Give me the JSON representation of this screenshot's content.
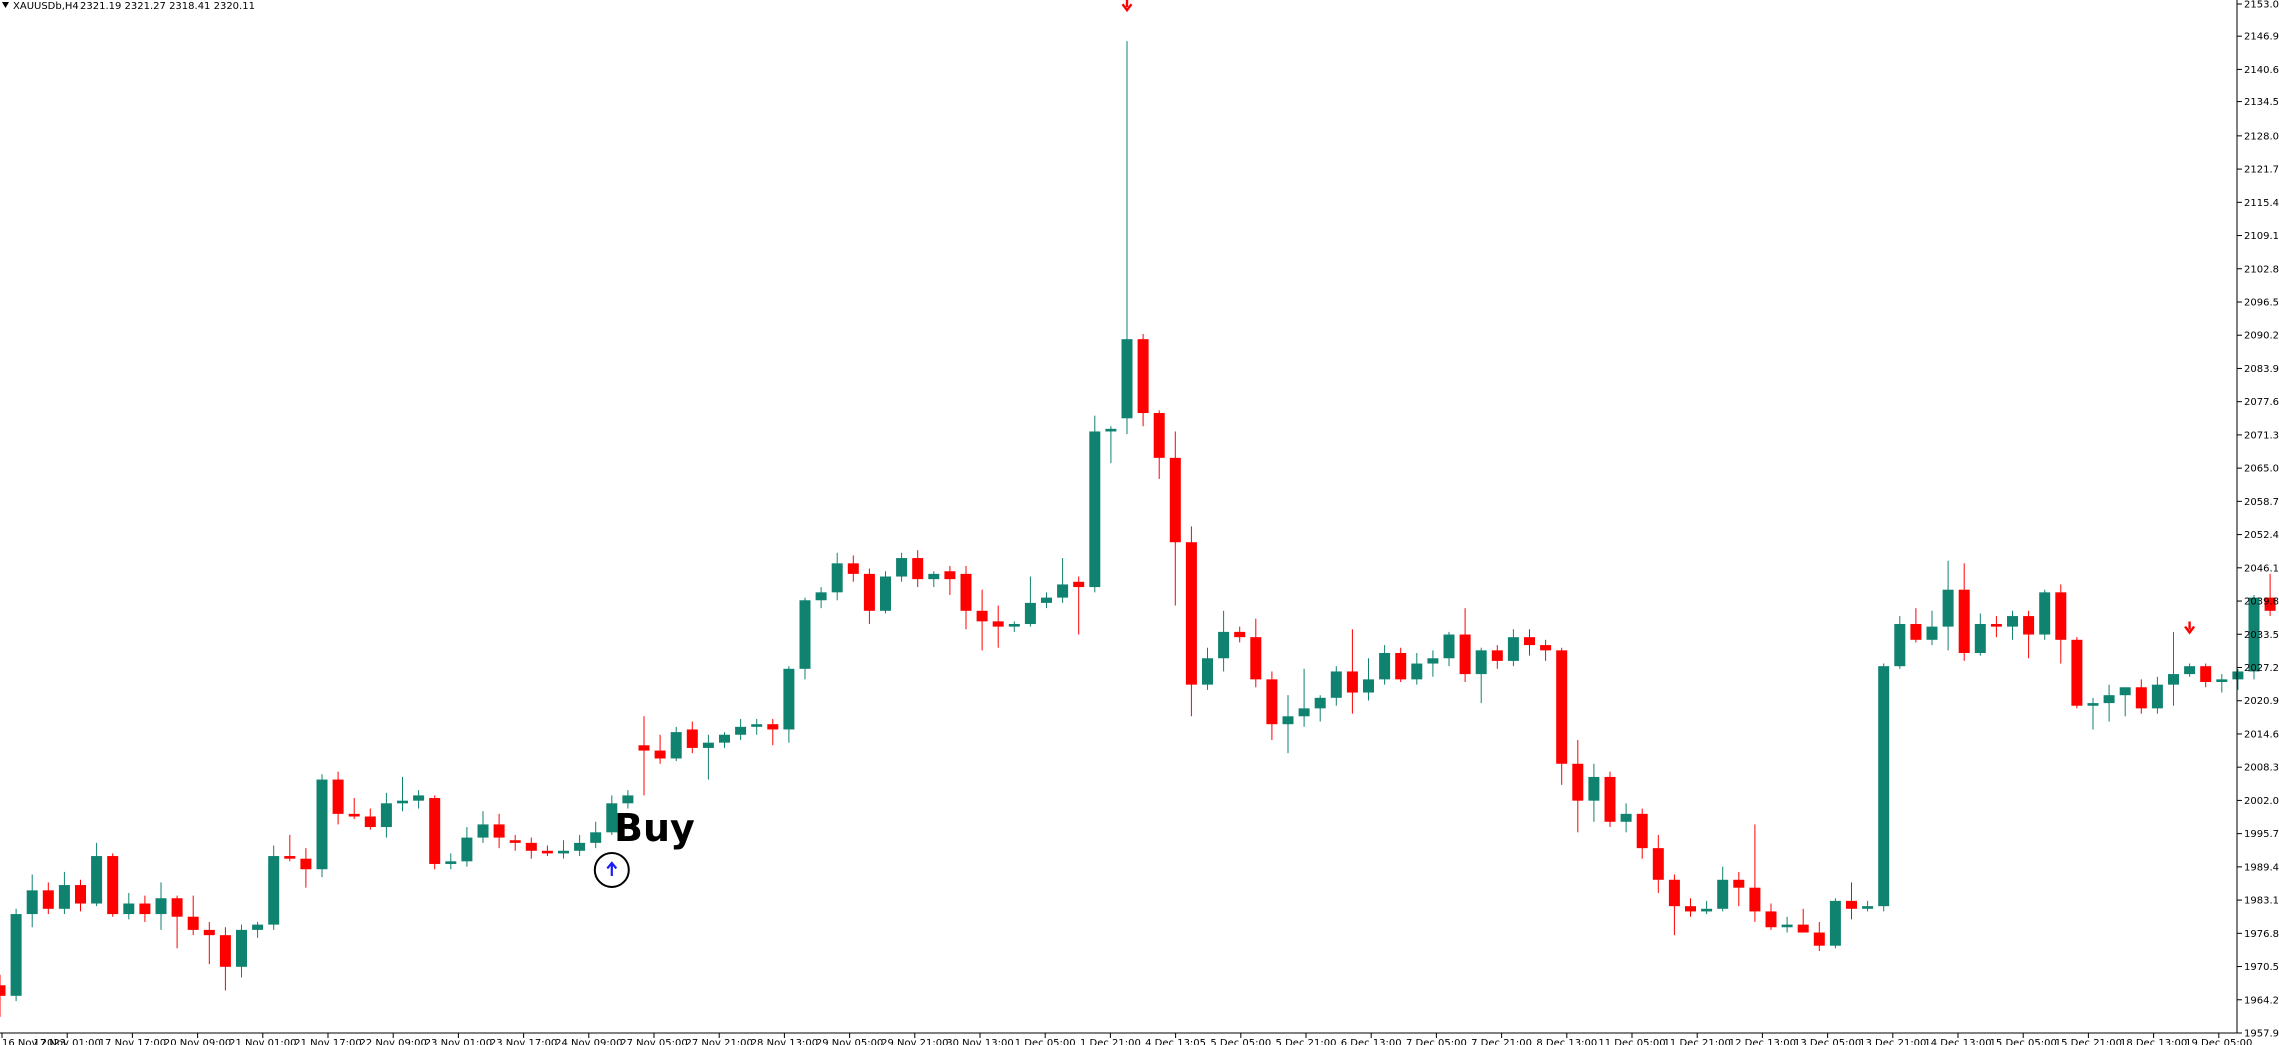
{
  "header": {
    "symbol": "XAUUSDb,H4",
    "ohlc": "2321.19 2321.27 2318.41 2320.11"
  },
  "colors": {
    "bull": "#0f8270",
    "bear": "#ff0000",
    "down_arrow": "#ff0000",
    "up_arrow": "#1a1aff",
    "axis": "#000000",
    "background": "#ffffff"
  },
  "chart_data": {
    "type": "candlestick",
    "title": "",
    "ylim": [
      1957.95,
      2153.05
    ],
    "y_ticks": [
      "2153.05",
      "2146.95",
      "2140.65",
      "2134.55",
      "2128.05",
      "2121.75",
      "2115.45",
      "2109.15",
      "2102.85",
      "2096.55",
      "2090.25",
      "2083.95",
      "2077.65",
      "2071.35",
      "2065.05",
      "2058.75",
      "2052.45",
      "2046.15",
      "2039.85",
      "2033.55",
      "2027.25",
      "2020.95",
      "2014.65",
      "2008.35",
      "2002.05",
      "1995.75",
      "1989.45",
      "1983.15",
      "1976.85",
      "1970.55",
      "1964.25",
      "1957.95"
    ],
    "x_ticks": [
      "16 Nov 2023",
      "17 Nov 01:00",
      "17 Nov 17:00",
      "20 Nov 09:00",
      "21 Nov 01:00",
      "21 Nov 17:00",
      "22 Nov 09:00",
      "23 Nov 01:00",
      "23 Nov 17:00",
      "24 Nov 09:00",
      "27 Nov 05:00",
      "27 Nov 21:00",
      "28 Nov 13:00",
      "29 Nov 05:00",
      "29 Nov 21:00",
      "30 Nov 13:00",
      "1 Dec 05:00",
      "1 Dec 21:00",
      "4 Dec 13:05",
      "5 Dec 05:00",
      "5 Dec 21:00",
      "6 Dec 13:00",
      "7 Dec 05:00",
      "7 Dec 21:00",
      "8 Dec 13:00",
      "11 Dec 05:00",
      "11 Dec 21:00",
      "12 Dec 13:00",
      "13 Dec 05:00",
      "13 Dec 21:00",
      "14 Dec 13:00",
      "15 Dec 05:00",
      "15 Dec 21:00",
      "18 Dec 13:00",
      "19 Dec 05:00"
    ],
    "candles": [
      [
        1967.0,
        1969.0,
        1961.0,
        1965.0
      ],
      [
        1965.0,
        1981.5,
        1964.0,
        1980.5
      ],
      [
        1980.5,
        1988.0,
        1978.0,
        1985.0
      ],
      [
        1985.0,
        1986.5,
        1980.5,
        1981.5
      ],
      [
        1981.5,
        1988.5,
        1980.5,
        1986.0
      ],
      [
        1986.0,
        1987.0,
        1981.0,
        1982.5
      ],
      [
        1982.5,
        1994.0,
        1982.0,
        1991.5
      ],
      [
        1991.5,
        1992.0,
        1980.0,
        1980.5
      ],
      [
        1980.5,
        1984.5,
        1979.5,
        1982.5
      ],
      [
        1982.5,
        1984.0,
        1979.0,
        1980.5
      ],
      [
        1980.5,
        1986.5,
        1977.5,
        1983.5
      ],
      [
        1983.5,
        1984.0,
        1974.0,
        1980.0
      ],
      [
        1980.0,
        1984.0,
        1976.5,
        1977.5
      ],
      [
        1977.5,
        1979.0,
        1971.0,
        1976.5
      ],
      [
        1976.5,
        1978.0,
        1966.0,
        1970.5
      ],
      [
        1970.5,
        1978.5,
        1968.5,
        1977.5
      ],
      [
        1977.5,
        1979.0,
        1976.0,
        1978.5
      ],
      [
        1978.5,
        1993.5,
        1977.5,
        1991.5
      ],
      [
        1991.5,
        1995.5,
        1990.5,
        1991.0
      ],
      [
        1991.0,
        1993.0,
        1985.5,
        1989.0
      ],
      [
        1989.0,
        2007.0,
        1987.5,
        2006.0
      ],
      [
        2006.0,
        2007.5,
        1997.5,
        1999.5
      ],
      [
        1999.5,
        2002.5,
        1998.5,
        1999.0
      ],
      [
        1999.0,
        2000.5,
        1996.5,
        1997.0
      ],
      [
        1997.0,
        2003.5,
        1995.0,
        2001.5
      ],
      [
        2001.5,
        2006.5,
        2000.0,
        2002.0
      ],
      [
        2002.0,
        2004.0,
        2000.5,
        2003.0
      ],
      [
        2002.5,
        2003.0,
        1989.0,
        1990.0
      ],
      [
        1990.0,
        1992.0,
        1989.0,
        1990.5
      ],
      [
        1990.5,
        1997.0,
        1989.5,
        1995.0
      ],
      [
        1995.0,
        2000.0,
        1994.0,
        1997.5
      ],
      [
        1997.5,
        1999.5,
        1993.0,
        1995.0
      ],
      [
        1994.5,
        1995.5,
        1992.5,
        1994.0
      ],
      [
        1994.0,
        1995.0,
        1991.0,
        1992.5
      ],
      [
        1992.5,
        1993.5,
        1991.5,
        1992.0
      ],
      [
        1992.0,
        1994.5,
        1991.0,
        1992.5
      ],
      [
        1992.5,
        1995.5,
        1991.5,
        1994.0
      ],
      [
        1994.0,
        1998.0,
        1993.0,
        1996.0
      ],
      [
        1996.0,
        2003.0,
        1995.5,
        2001.5
      ],
      [
        2001.5,
        2004.0,
        2000.5,
        2003.0
      ],
      [
        2012.5,
        2018.0,
        2003.0,
        2011.5
      ],
      [
        2011.5,
        2014.5,
        2009.0,
        2010.0
      ],
      [
        2010.0,
        2016.0,
        2009.5,
        2015.0
      ],
      [
        2015.5,
        2017.0,
        2011.0,
        2012.0
      ],
      [
        2012.0,
        2014.5,
        2006.0,
        2013.0
      ],
      [
        2013.0,
        2015.0,
        2012.0,
        2014.5
      ],
      [
        2014.5,
        2017.5,
        2013.5,
        2016.0
      ],
      [
        2016.0,
        2017.5,
        2014.5,
        2016.5
      ],
      [
        2016.5,
        2017.5,
        2012.5,
        2015.5
      ],
      [
        2015.5,
        2027.5,
        2013.0,
        2027.0
      ],
      [
        2027.0,
        2040.5,
        2025.0,
        2040.0
      ],
      [
        2040.0,
        2042.5,
        2038.5,
        2041.5
      ],
      [
        2041.5,
        2049.0,
        2040.0,
        2047.0
      ],
      [
        2047.0,
        2048.5,
        2043.5,
        2045.0
      ],
      [
        2045.0,
        2046.0,
        2035.5,
        2038.0
      ],
      [
        2038.0,
        2045.5,
        2037.5,
        2044.5
      ],
      [
        2044.5,
        2049.0,
        2043.5,
        2048.0
      ],
      [
        2048.0,
        2049.5,
        2042.5,
        2044.0
      ],
      [
        2044.0,
        2045.5,
        2042.5,
        2045.0
      ],
      [
        2045.5,
        2046.5,
        2041.0,
        2044.0
      ],
      [
        2045.0,
        2046.5,
        2034.5,
        2038.0
      ],
      [
        2038.0,
        2042.0,
        2030.5,
        2036.0
      ],
      [
        2036.0,
        2039.0,
        2031.0,
        2035.0
      ],
      [
        2035.0,
        2036.0,
        2034.0,
        2035.5
      ],
      [
        2035.5,
        2044.5,
        2035.0,
        2039.5
      ],
      [
        2039.5,
        2041.5,
        2038.5,
        2040.5
      ],
      [
        2040.5,
        2048.0,
        2039.5,
        2043.0
      ],
      [
        2043.5,
        2044.5,
        2033.5,
        2042.5
      ],
      [
        2042.5,
        2075.0,
        2041.5,
        2072.0
      ],
      [
        2072.0,
        2073.0,
        2066.0,
        2072.5
      ],
      [
        2074.5,
        2146.0,
        2071.5,
        2089.5
      ],
      [
        2089.5,
        2090.5,
        2073.0,
        2075.5
      ],
      [
        2075.5,
        2076.0,
        2063.0,
        2067.0
      ],
      [
        2067.0,
        2072.0,
        2039.0,
        2051.0
      ],
      [
        2051.0,
        2054.0,
        2018.0,
        2024.0
      ],
      [
        2024.0,
        2031.0,
        2023.0,
        2029.0
      ],
      [
        2029.0,
        2038.0,
        2026.5,
        2034.0
      ],
      [
        2034.0,
        2035.0,
        2032.0,
        2033.0
      ],
      [
        2033.0,
        2036.5,
        2023.5,
        2025.0
      ],
      [
        2025.0,
        2026.5,
        2013.5,
        2016.5
      ],
      [
        2016.5,
        2022.0,
        2011.0,
        2018.0
      ],
      [
        2018.0,
        2027.0,
        2016.0,
        2019.5
      ],
      [
        2019.5,
        2022.0,
        2017.0,
        2021.5
      ],
      [
        2021.5,
        2027.5,
        2020.0,
        2026.5
      ],
      [
        2026.5,
        2034.5,
        2018.5,
        2022.5
      ],
      [
        2022.5,
        2029.0,
        2021.0,
        2025.0
      ],
      [
        2025.0,
        2031.5,
        2024.0,
        2030.0
      ],
      [
        2030.0,
        2031.0,
        2024.5,
        2025.0
      ],
      [
        2025.0,
        2030.0,
        2024.0,
        2028.0
      ],
      [
        2028.0,
        2030.5,
        2025.5,
        2029.0
      ],
      [
        2029.0,
        2034.0,
        2027.5,
        2033.5
      ],
      [
        2033.5,
        2038.5,
        2024.5,
        2026.0
      ],
      [
        2026.0,
        2031.0,
        2020.5,
        2030.5
      ],
      [
        2030.5,
        2031.5,
        2027.0,
        2028.5
      ],
      [
        2028.5,
        2034.5,
        2027.5,
        2033.0
      ],
      [
        2033.0,
        2034.5,
        2029.5,
        2031.5
      ],
      [
        2031.5,
        2032.5,
        2028.5,
        2030.5
      ],
      [
        2030.5,
        2031.0,
        2005.0,
        2009.0
      ],
      [
        2009.0,
        2013.5,
        1996.0,
        2002.0
      ],
      [
        2002.0,
        2009.0,
        1998.0,
        2006.5
      ],
      [
        2006.5,
        2007.5,
        1997.0,
        1998.0
      ],
      [
        1998.0,
        2001.5,
        1996.0,
        1999.5
      ],
      [
        1999.5,
        2000.5,
        1991.0,
        1993.0
      ],
      [
        1993.0,
        1995.5,
        1984.5,
        1987.0
      ],
      [
        1987.0,
        1988.0,
        1976.5,
        1982.0
      ],
      [
        1982.0,
        1983.5,
        1980.0,
        1981.0
      ],
      [
        1981.0,
        1983.0,
        1980.5,
        1981.5
      ],
      [
        1981.5,
        1989.5,
        1981.0,
        1987.0
      ],
      [
        1987.0,
        1988.5,
        1982.0,
        1985.5
      ],
      [
        1985.5,
        1997.5,
        1979.0,
        1981.0
      ],
      [
        1981.0,
        1982.5,
        1977.5,
        1978.0
      ],
      [
        1978.0,
        1980.0,
        1977.0,
        1978.5
      ],
      [
        1978.5,
        1981.5,
        1977.0,
        1977.0
      ],
      [
        1977.0,
        1979.0,
        1973.5,
        1974.5
      ],
      [
        1974.5,
        1983.5,
        1974.0,
        1983.0
      ],
      [
        1983.0,
        1986.5,
        1979.5,
        1981.5
      ],
      [
        1981.5,
        1983.0,
        1981.0,
        1982.0
      ],
      [
        1982.0,
        2028.0,
        1981.0,
        2027.5
      ],
      [
        2027.5,
        2037.0,
        2027.0,
        2035.5
      ],
      [
        2035.5,
        2038.5,
        2032.0,
        2032.5
      ],
      [
        2032.5,
        2038.0,
        2031.5,
        2035.0
      ],
      [
        2035.0,
        2047.5,
        2030.5,
        2042.0
      ],
      [
        2042.0,
        2047.0,
        2028.5,
        2030.0
      ],
      [
        2030.0,
        2037.5,
        2029.5,
        2035.5
      ],
      [
        2035.5,
        2037.0,
        2033.0,
        2035.0
      ],
      [
        2035.0,
        2038.0,
        2032.5,
        2037.0
      ],
      [
        2037.0,
        2038.0,
        2029.0,
        2033.5
      ],
      [
        2033.5,
        2042.0,
        2032.5,
        2041.5
      ],
      [
        2041.5,
        2043.0,
        2028.0,
        2032.5
      ],
      [
        2032.5,
        2033.0,
        2019.5,
        2020.0
      ],
      [
        2020.0,
        2021.5,
        2015.5,
        2020.5
      ],
      [
        2020.5,
        2024.0,
        2017.0,
        2022.0
      ],
      [
        2022.0,
        2023.5,
        2018.0,
        2023.5
      ],
      [
        2023.5,
        2025.0,
        2018.5,
        2019.5
      ],
      [
        2019.5,
        2025.5,
        2018.5,
        2024.0
      ],
      [
        2024.0,
        2034.0,
        2020.0,
        2026.0
      ],
      [
        2026.0,
        2028.0,
        2025.5,
        2027.5
      ],
      [
        2027.5,
        2028.0,
        2023.5,
        2024.5
      ],
      [
        2024.5,
        2026.0,
        2022.5,
        2025.0
      ],
      [
        2025.0,
        2027.0,
        2023.0,
        2026.5
      ],
      [
        2026.5,
        2041.0,
        2025.0,
        2040.5
      ],
      [
        2040.5,
        2045.0,
        2037.0,
        2038.0
      ]
    ],
    "signals": [
      {
        "type": "sell",
        "candle": 70
      },
      {
        "type": "buy",
        "candle": 38
      },
      {
        "type": "sell",
        "candle": 136
      }
    ],
    "annotation": "Buy"
  }
}
